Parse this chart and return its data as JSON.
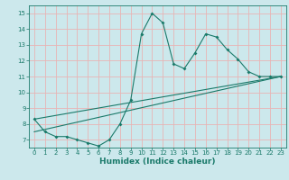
{
  "title": "",
  "xlabel": "Humidex (Indice chaleur)",
  "bg_color": "#cce8ec",
  "grid_color": "#e8b4b4",
  "line_color": "#1a7a6a",
  "xlim": [
    -0.5,
    23.5
  ],
  "ylim": [
    6.5,
    15.5
  ],
  "xticks": [
    0,
    1,
    2,
    3,
    4,
    5,
    6,
    7,
    8,
    9,
    10,
    11,
    12,
    13,
    14,
    15,
    16,
    17,
    18,
    19,
    20,
    21,
    22,
    23
  ],
  "yticks": [
    7,
    8,
    9,
    10,
    11,
    12,
    13,
    14,
    15
  ],
  "line1_x": [
    0,
    1,
    2,
    3,
    4,
    5,
    6,
    7,
    8,
    9,
    10,
    11,
    12,
    13,
    14,
    15,
    16,
    17,
    18,
    19,
    20,
    21,
    22,
    23
  ],
  "line1_y": [
    8.3,
    7.5,
    7.2,
    7.2,
    7.0,
    6.8,
    6.6,
    7.0,
    8.0,
    9.5,
    13.7,
    15.0,
    14.4,
    11.8,
    11.5,
    12.5,
    13.7,
    13.5,
    12.7,
    12.1,
    11.3,
    11.0,
    11.0,
    11.0
  ],
  "line2_x": [
    0,
    23
  ],
  "line2_y": [
    7.5,
    11.0
  ],
  "line3_x": [
    0,
    23
  ],
  "line3_y": [
    8.3,
    11.0
  ]
}
